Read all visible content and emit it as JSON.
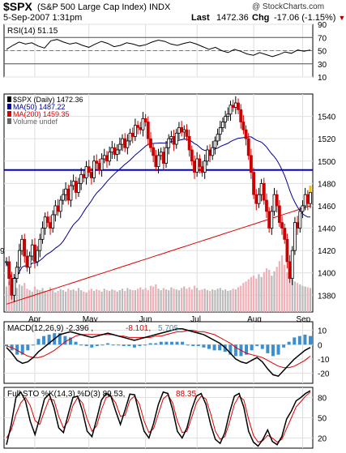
{
  "header": {
    "symbol": "$SPX",
    "name": "(S&P 500 Large Cap Index)",
    "exchange": "INDX",
    "brand": "@ StockCharts.com",
    "date": "5-Sep-2007 1:31pm",
    "last_label": "Last",
    "last_value": "1472.36",
    "chg_label": "Chg",
    "chg_value": "-17.06 (-1.15%)"
  },
  "colors": {
    "price_up": "#000000",
    "price_down": "#cc0000",
    "ma50": "#000099",
    "ma200": "#dd0000",
    "volume_up": "#bbbbbb",
    "volume_down": "#f0b0b8",
    "hline": "#0000cc",
    "macd_hist": "#3a8fd0",
    "signal": "#dd0000"
  },
  "chart_data": [
    {
      "type": "line",
      "title": "RSI(14)",
      "legend_value": "51.15",
      "ylim": [
        10,
        90
      ],
      "ticks": [
        90,
        70,
        50,
        30,
        10
      ],
      "reference_lines": [
        70,
        30
      ],
      "series": [
        {
          "name": "RSI(14)",
          "values": [
            52,
            58,
            63,
            60,
            62,
            57,
            54,
            65,
            67,
            63,
            60,
            62,
            58,
            55,
            60,
            64,
            61,
            56,
            58,
            62,
            60,
            57,
            59,
            63,
            66,
            64,
            60,
            58,
            61,
            63,
            60,
            56,
            52,
            55,
            50,
            47,
            52,
            49,
            45,
            43,
            47,
            44,
            41,
            44,
            48,
            46,
            51,
            49,
            51
          ]
        }
      ]
    },
    {
      "type": "candlestick",
      "title": "$SPX (Daily)",
      "legend": [
        {
          "name": "$SPX (Daily)",
          "value": "1472.36"
        },
        {
          "name": "MA(50)",
          "value": "1487.22"
        },
        {
          "name": "MA(200)",
          "value": "1459.35"
        },
        {
          "name": "Volume undef",
          "value": ""
        }
      ],
      "ylim": [
        1365,
        1560
      ],
      "yticks": [
        1540,
        1520,
        1500,
        1480,
        1460,
        1440,
        1420,
        1400,
        1380
      ],
      "left_edge_label": "9",
      "horizontal_line": 1492,
      "x_labels": [
        "Apr",
        "May",
        "Jun",
        "Jul",
        "Aug",
        "Sep"
      ],
      "x_label_positions": [
        11,
        32,
        54,
        74,
        96,
        115
      ],
      "close": [
        1410,
        1395,
        1380,
        1395,
        1405,
        1420,
        1430,
        1415,
        1405,
        1415,
        1425,
        1410,
        1420,
        1430,
        1440,
        1450,
        1445,
        1440,
        1452,
        1460,
        1455,
        1465,
        1470,
        1475,
        1465,
        1478,
        1482,
        1472,
        1480,
        1488,
        1485,
        1495,
        1490,
        1485,
        1500,
        1498,
        1492,
        1502,
        1505,
        1500,
        1508,
        1512,
        1506,
        1510,
        1515,
        1520,
        1512,
        1518,
        1525,
        1522,
        1532,
        1530,
        1528,
        1538,
        1535,
        1520,
        1512,
        1505,
        1495,
        1505,
        1508,
        1498,
        1512,
        1520,
        1522,
        1515,
        1525,
        1530,
        1526,
        1528,
        1522,
        1510,
        1500,
        1490,
        1502,
        1495,
        1490,
        1500,
        1510,
        1505,
        1512,
        1518,
        1524,
        1530,
        1535,
        1540,
        1542,
        1550,
        1548,
        1552,
        1546,
        1535,
        1528,
        1520,
        1505,
        1490,
        1470,
        1462,
        1470,
        1480,
        1465,
        1455,
        1440,
        1455,
        1470,
        1460,
        1445,
        1440,
        1430,
        1410,
        1395,
        1420,
        1445,
        1440,
        1455,
        1460,
        1470,
        1462,
        1472
      ]
    },
    {
      "type": "bar",
      "title": "Volume",
      "values": [
        35,
        42,
        48,
        30,
        33,
        38,
        36,
        40,
        32,
        30,
        28,
        35,
        31,
        30,
        33,
        29,
        28,
        34,
        30,
        27,
        29,
        31,
        30,
        28,
        32,
        30,
        31,
        29,
        33,
        30,
        28,
        27,
        30,
        32,
        29,
        31,
        30,
        28,
        32,
        30,
        29,
        31,
        30,
        28,
        30,
        32,
        29,
        33,
        31,
        30,
        30,
        32,
        34,
        31,
        33,
        30,
        36,
        35,
        38,
        32,
        30,
        33,
        31,
        30,
        34,
        32,
        31,
        30,
        33,
        35,
        32,
        34,
        31,
        36,
        33,
        30,
        31,
        32,
        30,
        29,
        31,
        30,
        32,
        33,
        30,
        31,
        29,
        30,
        32,
        31,
        34,
        36,
        40,
        42,
        45,
        48,
        50,
        46,
        52,
        48,
        55,
        60,
        58,
        50,
        56,
        62,
        70,
        78,
        65,
        55,
        50,
        45,
        42,
        40,
        38,
        36,
        35,
        34,
        33
      ]
    },
    {
      "type": "line",
      "title": "MACD(12,26,9)",
      "legend": [
        {
          "name": "MACD(12,26,9)",
          "value": "-2.396"
        },
        {
          "name": "signal",
          "value": "-8.101"
        },
        {
          "name": "histogram",
          "value": "5.705"
        }
      ],
      "ylim": [
        -27,
        16
      ],
      "yticks": [
        10,
        0,
        -10,
        -20
      ],
      "series": [
        {
          "name": "MACD(12,26,9)",
          "values": [
            -2,
            -6,
            -11,
            -13,
            -12,
            -9,
            -5,
            -2,
            1,
            4,
            7,
            8,
            9,
            8,
            7,
            6,
            5,
            6,
            7,
            8,
            7,
            6,
            5,
            4,
            3,
            4,
            5,
            6,
            7,
            8,
            9,
            10,
            11,
            11,
            10,
            9,
            8,
            7,
            5,
            3,
            1,
            -2,
            -6,
            -10,
            -12,
            -13,
            -11,
            -9,
            -12,
            -17,
            -21,
            -22,
            -18,
            -14,
            -10,
            -7,
            -4,
            -2
          ]
        },
        {
          "name": "signal",
          "values": [
            -1,
            -2,
            -4,
            -6,
            -8,
            -9,
            -9,
            -8,
            -6,
            -4,
            -1,
            2,
            4,
            6,
            7,
            7,
            7,
            7,
            7,
            7,
            7,
            6,
            6,
            5,
            5,
            5,
            5,
            5,
            6,
            6,
            7,
            8,
            9,
            9,
            10,
            10,
            9,
            9,
            8,
            7,
            5,
            3,
            1,
            -2,
            -4,
            -6,
            -7,
            -8,
            -9,
            -11,
            -13,
            -15,
            -16,
            -16,
            -15,
            -13,
            -11,
            -8
          ]
        }
      ]
    },
    {
      "type": "line",
      "title": "Full STO %K(14,3) %D(3)",
      "legend": [
        {
          "name": "%K(14,3)",
          "value": "89.53"
        },
        {
          "name": "%D(3)",
          "value": "88.35"
        }
      ],
      "ylim": [
        5,
        95
      ],
      "yticks": [
        80,
        50,
        20
      ],
      "series": [
        {
          "name": "%K(14,3)",
          "values": [
            10,
            40,
            80,
            88,
            75,
            45,
            25,
            50,
            78,
            85,
            65,
            35,
            28,
            55,
            80,
            82,
            60,
            30,
            22,
            48,
            76,
            86,
            82,
            60,
            40,
            62,
            85,
            84,
            55,
            30,
            20,
            42,
            70,
            88,
            86,
            62,
            30,
            20,
            35,
            62,
            82,
            86,
            70,
            40,
            18,
            12,
            28,
            58,
            82,
            86,
            65,
            30,
            14,
            8,
            18,
            32,
            15,
            10,
            22,
            48,
            60,
            75,
            80,
            86,
            90
          ]
        },
        {
          "name": "%D(3)",
          "values": [
            20,
            32,
            55,
            72,
            80,
            68,
            46,
            40,
            60,
            78,
            76,
            52,
            35,
            45,
            68,
            80,
            72,
            48,
            30,
            38,
            62,
            80,
            82,
            72,
            52,
            54,
            76,
            82,
            70,
            45,
            28,
            34,
            56,
            78,
            84,
            72,
            45,
            28,
            30,
            50,
            72,
            82,
            78,
            56,
            30,
            18,
            22,
            44,
            70,
            82,
            76,
            48,
            24,
            14,
            16,
            24,
            20,
            14,
            18,
            34,
            50,
            66,
            74,
            82,
            88
          ]
        }
      ]
    }
  ]
}
